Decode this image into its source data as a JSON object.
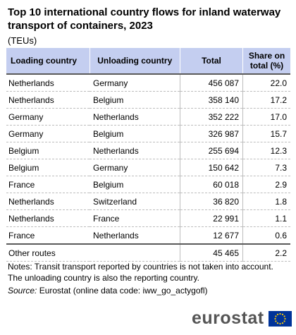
{
  "title": "Top 10 international country flows for inland waterway transport of containers, 2023",
  "unit": "(TEUs)",
  "table": {
    "headers": [
      "Loading country",
      "Unloading country",
      "Total",
      "Share on total (%)"
    ],
    "rows": [
      [
        "Netherlands",
        "Germany",
        "456 087",
        "22.0"
      ],
      [
        "Netherlands",
        "Belgium",
        "358 140",
        "17.2"
      ],
      [
        "Germany",
        "Netherlands",
        "352 222",
        "17.0"
      ],
      [
        "Germany",
        "Belgium",
        "326 987",
        "15.7"
      ],
      [
        "Belgium",
        "Netherlands",
        "255 694",
        "12.3"
      ],
      [
        "Belgium",
        "Germany",
        "150 642",
        "7.3"
      ],
      [
        "France",
        "Belgium",
        "60 018",
        "2.9"
      ],
      [
        "Netherlands",
        "Switzerland",
        "36 820",
        "1.8"
      ],
      [
        "Netherlands",
        "France",
        "22 991",
        "1.1"
      ],
      [
        "France",
        "Netherlands",
        "12 677",
        "0.6"
      ]
    ],
    "other": [
      "Other routes",
      "",
      "45 465",
      "2.2"
    ]
  },
  "notes": "Notes: Transit transport reported by countries is not taken into account. The unloading country is also the reporting country.",
  "source_label": "Source:",
  "source_text": "Eurostat (online data code: iww_go_actygofl)",
  "logo_text": "eurostat",
  "colors": {
    "header_bg": "#c4cef0",
    "eu_blue": "#003399",
    "eu_yellow": "#ffcc00",
    "logo_gray": "#555555"
  }
}
